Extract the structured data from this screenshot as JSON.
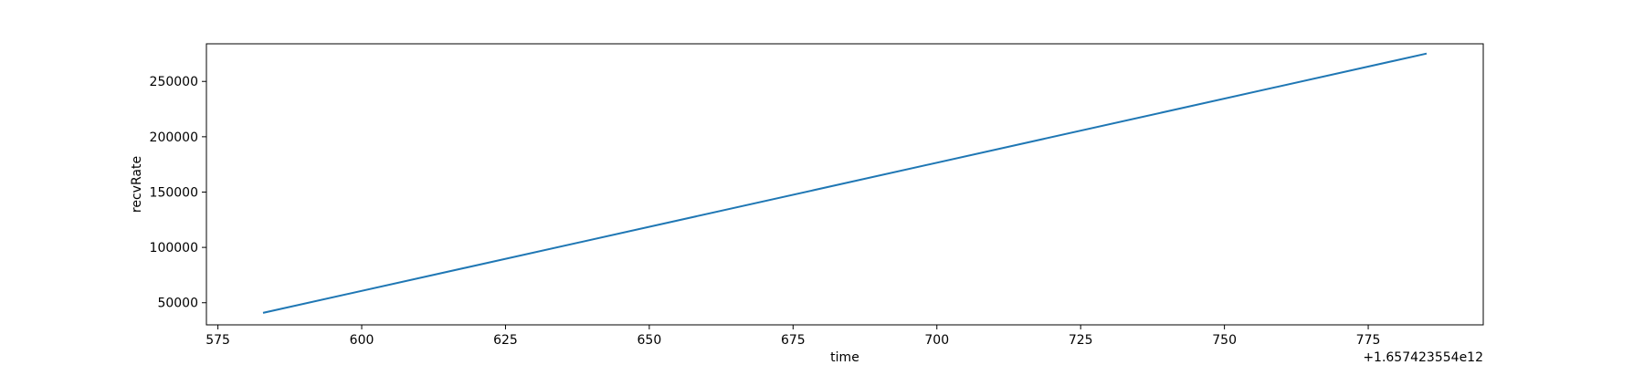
{
  "chart_data": {
    "type": "line",
    "xlabel": "time",
    "ylabel": "recvRate",
    "x_offset_label": "+1.657423554e12",
    "xlim": [
      573,
      795
    ],
    "ylim": [
      30000,
      284000
    ],
    "xticks": [
      575,
      600,
      625,
      650,
      675,
      700,
      725,
      750,
      775
    ],
    "yticks": [
      50000,
      100000,
      150000,
      200000,
      250000
    ],
    "grid": false,
    "series": [
      {
        "color": "#1f77b4",
        "x": [
          583,
          785
        ],
        "y": [
          41000,
          275000
        ]
      }
    ]
  }
}
